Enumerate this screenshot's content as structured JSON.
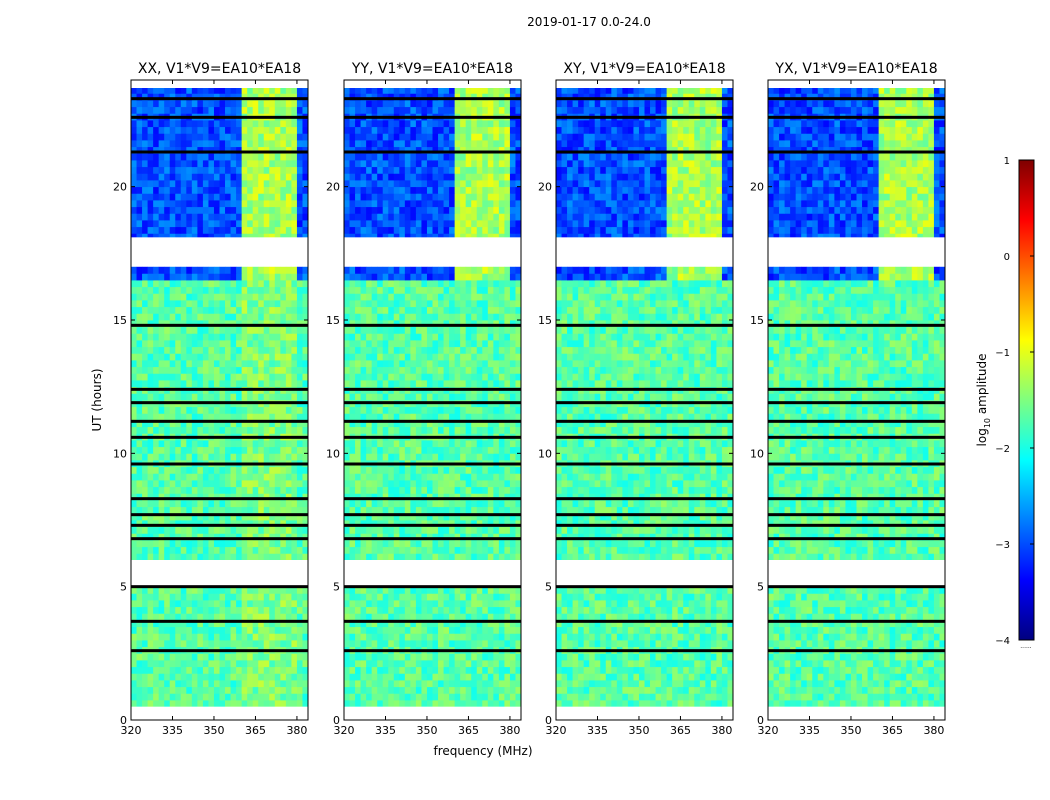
{
  "figure": {
    "title": "2019-01-17 0.0-24.0",
    "xlabel": "frequency (MHz)",
    "ylabel": "UT (hours)"
  },
  "colorbar": {
    "label_prefix": "log",
    "label_sub": "10",
    "label_suffix": " amplitude",
    "range": [
      -4,
      1
    ],
    "ticks": [
      1,
      0,
      -1,
      -2,
      -3,
      -4
    ],
    "tick_labels": [
      "1",
      "0",
      "−1",
      "−2",
      "−3",
      "−4"
    ],
    "stops": [
      "#00007f",
      "#0000ff",
      "#007fff",
      "#00ffff",
      "#7fff7f",
      "#ffff00",
      "#ff7f00",
      "#ff0000",
      "#7f0000"
    ],
    "footnote": "......"
  },
  "colors": {
    "flagged": "#000000",
    "nodata": "#ffffff"
  },
  "chart_data": [
    {
      "type": "heatmap",
      "title": "XX, V1*V9=EA10*EA18",
      "xlim": [
        320,
        384
      ],
      "ylim": [
        0,
        24
      ],
      "xticks": [
        320,
        335,
        350,
        365,
        380
      ],
      "yticks": [
        0,
        5,
        10,
        15,
        20
      ],
      "rfi_band_mhz": [
        360,
        380
      ],
      "quiet_band_mhz": [
        [
          320,
          360
        ],
        [
          380,
          384
        ]
      ],
      "level_by_ut": [
        {
          "ut_range": [
            18.1,
            24.0
          ],
          "quiet_log_amp": -3.0,
          "rfi_log_amp": -1.3
        },
        {
          "ut_range": [
            16.5,
            17.0
          ],
          "quiet_log_amp": -3.0,
          "rfi_log_amp": -1.3
        },
        {
          "ut_range": [
            0.5,
            16.5
          ],
          "quiet_log_amp": -1.7,
          "rfi_log_amp": -1.5
        }
      ],
      "no_data_ut": [
        [
          0.0,
          0.5
        ],
        [
          17.0,
          18.1
        ],
        [
          5.0,
          6.0
        ],
        [
          23.7,
          24.0
        ]
      ],
      "flagged_ut": [
        23.3,
        22.6,
        21.3,
        14.8,
        12.4,
        11.9,
        11.2,
        10.6,
        9.6,
        8.3,
        7.7,
        7.3,
        6.8,
        5.0,
        3.7,
        2.6
      ]
    },
    {
      "type": "heatmap",
      "title": "YY, V1*V9=EA10*EA18",
      "xlim": [
        320,
        384
      ],
      "ylim": [
        0,
        24
      ],
      "xticks": [
        320,
        335,
        350,
        365,
        380
      ],
      "yticks": [
        0,
        5,
        10,
        15,
        20
      ],
      "rfi_band_mhz": [
        360,
        380
      ],
      "quiet_band_mhz": [
        [
          320,
          360
        ],
        [
          380,
          384
        ]
      ],
      "level_by_ut": [
        {
          "ut_range": [
            18.1,
            24.0
          ],
          "quiet_log_amp": -3.0,
          "rfi_log_amp": -1.3
        },
        {
          "ut_range": [
            16.5,
            17.0
          ],
          "quiet_log_amp": -3.0,
          "rfi_log_amp": -1.3
        },
        {
          "ut_range": [
            0.5,
            16.5
          ],
          "quiet_log_amp": -1.7,
          "rfi_log_amp": -1.7
        }
      ],
      "no_data_ut": [
        [
          0.0,
          0.5
        ],
        [
          17.0,
          18.1
        ],
        [
          5.0,
          6.0
        ],
        [
          23.7,
          24.0
        ]
      ],
      "flagged_ut": [
        23.3,
        22.6,
        21.3,
        14.8,
        12.4,
        11.9,
        11.2,
        10.6,
        9.6,
        8.3,
        7.7,
        7.3,
        6.8,
        5.0,
        3.7,
        2.6
      ]
    },
    {
      "type": "heatmap",
      "title": "XY, V1*V9=EA10*EA18",
      "xlim": [
        320,
        384
      ],
      "ylim": [
        0,
        24
      ],
      "xticks": [
        320,
        335,
        350,
        365,
        380
      ],
      "yticks": [
        0,
        5,
        10,
        15,
        20
      ],
      "rfi_band_mhz": [
        360,
        380
      ],
      "quiet_band_mhz": [
        [
          320,
          360
        ],
        [
          380,
          384
        ]
      ],
      "level_by_ut": [
        {
          "ut_range": [
            18.1,
            24.0
          ],
          "quiet_log_amp": -3.0,
          "rfi_log_amp": -1.3
        },
        {
          "ut_range": [
            16.5,
            17.0
          ],
          "quiet_log_amp": -3.0,
          "rfi_log_amp": -1.3
        },
        {
          "ut_range": [
            0.5,
            16.5
          ],
          "quiet_log_amp": -1.7,
          "rfi_log_amp": -1.7
        }
      ],
      "no_data_ut": [
        [
          0.0,
          0.5
        ],
        [
          17.0,
          18.1
        ],
        [
          5.0,
          6.0
        ],
        [
          23.7,
          24.0
        ]
      ],
      "flagged_ut": [
        23.3,
        22.6,
        21.3,
        14.8,
        12.4,
        11.9,
        11.2,
        10.6,
        9.6,
        8.3,
        7.7,
        7.3,
        6.8,
        5.0,
        3.7,
        2.6
      ]
    },
    {
      "type": "heatmap",
      "title": "YX, V1*V9=EA10*EA18",
      "xlim": [
        320,
        384
      ],
      "ylim": [
        0,
        24
      ],
      "xticks": [
        320,
        335,
        350,
        365,
        380
      ],
      "yticks": [
        0,
        5,
        10,
        15,
        20
      ],
      "rfi_band_mhz": [
        360,
        380
      ],
      "quiet_band_mhz": [
        [
          320,
          360
        ],
        [
          380,
          384
        ]
      ],
      "level_by_ut": [
        {
          "ut_range": [
            18.1,
            24.0
          ],
          "quiet_log_amp": -3.0,
          "rfi_log_amp": -1.3
        },
        {
          "ut_range": [
            16.5,
            17.0
          ],
          "quiet_log_amp": -3.0,
          "rfi_log_amp": -1.3
        },
        {
          "ut_range": [
            0.5,
            16.5
          ],
          "quiet_log_amp": -1.7,
          "rfi_log_amp": -1.7
        }
      ],
      "no_data_ut": [
        [
          0.0,
          0.5
        ],
        [
          17.0,
          18.1
        ],
        [
          5.0,
          6.0
        ],
        [
          23.7,
          24.0
        ]
      ],
      "flagged_ut": [
        23.3,
        22.6,
        21.3,
        14.8,
        12.4,
        11.9,
        11.2,
        10.6,
        9.6,
        8.3,
        7.7,
        7.3,
        6.8,
        5.0,
        3.7,
        2.6
      ]
    }
  ]
}
